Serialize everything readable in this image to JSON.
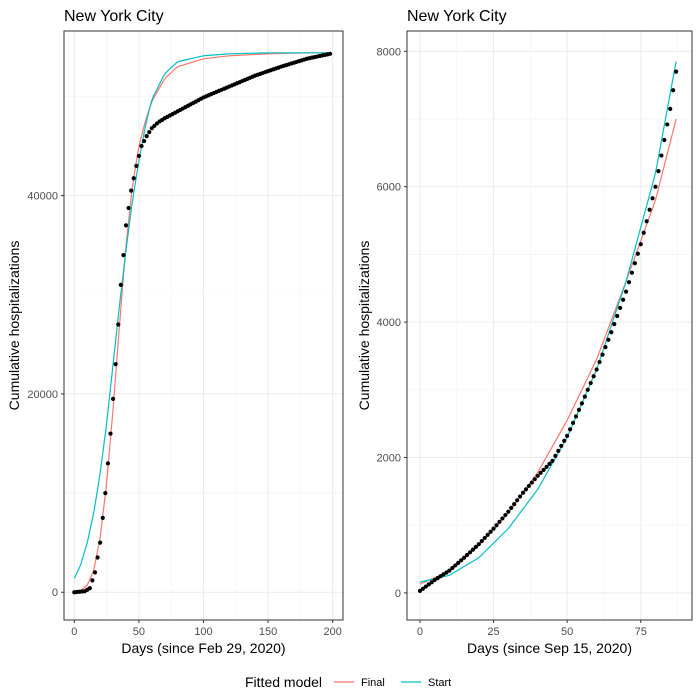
{
  "legend": {
    "title": "Fitted model",
    "entries": [
      {
        "label": "Final",
        "color": "#F8766D"
      },
      {
        "label": "Start",
        "color": "#00BFC4"
      }
    ]
  },
  "colors": {
    "points": "#000000",
    "grid_major": "#ebebeb",
    "grid_minor": "#f4f4f4",
    "panel_border": "#333333"
  },
  "chart_data": [
    {
      "type": "scatter",
      "title": "New York City",
      "xlabel": "Days (since Feb 29, 2020)",
      "ylabel": "Cumulative hospitalizations",
      "xlim": [
        -8,
        208
      ],
      "ylim": [
        -2800,
        56600
      ],
      "xticks": [
        0,
        50,
        100,
        150,
        200
      ],
      "xtick_labels": [
        "0",
        "50",
        "100",
        "150",
        "200"
      ],
      "yticks": [
        0,
        20000,
        40000
      ],
      "ytick_labels": [
        "0",
        "20000",
        "40000"
      ],
      "observed": {
        "x_range": [
          0,
          198
        ],
        "point_every": 2,
        "knots_x": [
          0,
          8,
          12,
          16,
          20,
          24,
          28,
          32,
          36,
          40,
          44,
          48,
          52,
          56,
          60,
          65,
          70,
          80,
          90,
          100,
          120,
          140,
          160,
          180,
          198
        ],
        "knots_y": [
          0,
          100,
          400,
          2000,
          5000,
          10000,
          16000,
          23000,
          31000,
          37000,
          40500,
          43000,
          45000,
          46000,
          46800,
          47400,
          47800,
          48500,
          49200,
          49900,
          51000,
          52100,
          53000,
          53800,
          54300
        ]
      },
      "series": [
        {
          "name": "Final",
          "x": [
            0,
            5,
            10,
            15,
            20,
            25,
            30,
            35,
            40,
            45,
            50,
            55,
            60,
            70,
            80,
            100,
            120,
            150,
            180,
            198
          ],
          "y": [
            100,
            200,
            700,
            2200,
            5500,
            11000,
            18500,
            27000,
            35000,
            41000,
            45000,
            47500,
            49500,
            51800,
            53000,
            53800,
            54100,
            54300,
            54400,
            54400
          ]
        },
        {
          "name": "Start",
          "x": [
            0,
            5,
            10,
            15,
            20,
            25,
            30,
            35,
            40,
            45,
            50,
            55,
            60,
            70,
            80,
            100,
            120,
            150,
            180,
            198
          ],
          "y": [
            1400,
            2800,
            5000,
            8000,
            12000,
            17000,
            23000,
            29000,
            34500,
            39500,
            43500,
            47000,
            49700,
            52300,
            53500,
            54100,
            54300,
            54400,
            54400,
            54400
          ]
        }
      ]
    },
    {
      "type": "scatter",
      "title": "New York City",
      "xlabel": "Days (since Sep 15, 2020)",
      "ylabel": "Cumulative hospitalizations",
      "xlim": [
        -4.4,
        92.4
      ],
      "ylim": [
        -400,
        8300
      ],
      "xticks": [
        0,
        25,
        50,
        75
      ],
      "xtick_labels": [
        "0",
        "25",
        "50",
        "75"
      ],
      "yticks": [
        0,
        2000,
        4000,
        6000,
        8000
      ],
      "ytick_labels": [
        "0",
        "2000",
        "4000",
        "6000",
        "8000"
      ],
      "observed": {
        "x_range": [
          0,
          87
        ],
        "point_every": 1,
        "knots_x": [
          0,
          5,
          10,
          15,
          20,
          25,
          30,
          35,
          40,
          45,
          50,
          55,
          60,
          65,
          70,
          75,
          80,
          85,
          87
        ],
        "knots_y": [
          30,
          190,
          330,
          520,
          720,
          950,
          1200,
          1480,
          1730,
          1950,
          2320,
          2800,
          3300,
          3850,
          4450,
          5150,
          6000,
          7150,
          7700
        ]
      },
      "series": [
        {
          "name": "Final",
          "x": [
            0,
            10,
            20,
            30,
            40,
            50,
            60,
            70,
            80,
            87
          ],
          "y": [
            130,
            320,
            700,
            1180,
            1780,
            2550,
            3450,
            4600,
            5800,
            7000
          ]
        },
        {
          "name": "Start",
          "x": [
            0,
            10,
            20,
            30,
            40,
            50,
            60,
            70,
            80,
            87
          ],
          "y": [
            160,
            260,
            520,
            950,
            1530,
            2300,
            3300,
            4600,
            6200,
            7850
          ]
        }
      ]
    }
  ]
}
